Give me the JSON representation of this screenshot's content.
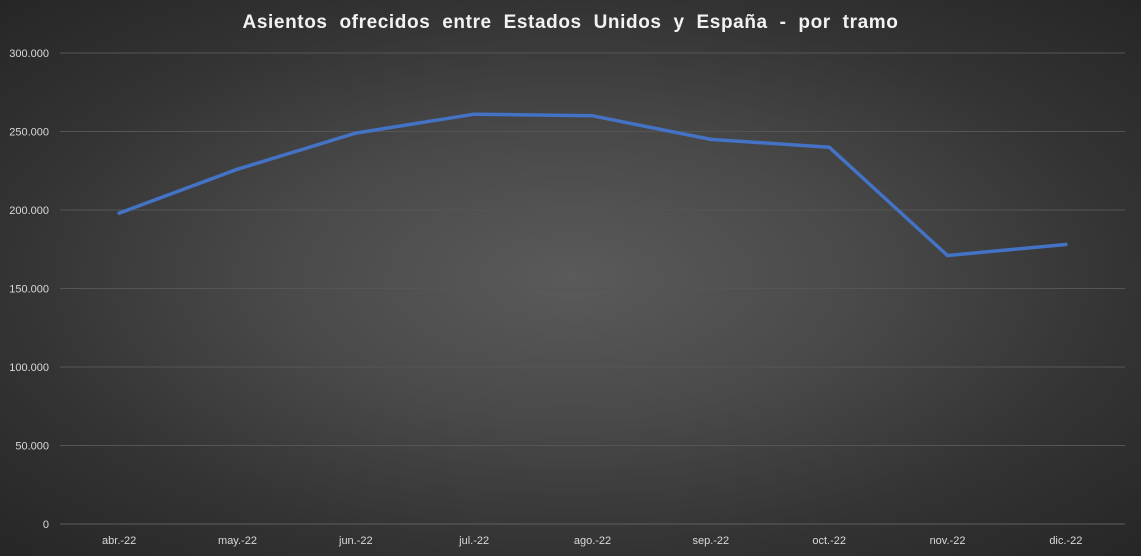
{
  "chart_data": {
    "type": "line",
    "title": "Asientos  ofrecidos  entre  Estados  Unidos  y  España  - por  tramo",
    "categories": [
      "abr.-22",
      "may.-22",
      "jun.-22",
      "jul.-22",
      "ago.-22",
      "sep.-22",
      "oct.-22",
      "nov.-22",
      "dic.-22"
    ],
    "series": [
      {
        "values": [
          198000,
          226000,
          249000,
          261000,
          260000,
          245000,
          240000,
          171000,
          178000
        ],
        "color": "#4472c4"
      }
    ],
    "ylim": [
      0,
      300000
    ],
    "yticks": [
      "0",
      "50.000",
      "100.000",
      "150.000",
      "200.000",
      "250.000",
      "300.000"
    ],
    "ytick_values": [
      0,
      50000,
      100000,
      150000,
      200000,
      250000,
      300000
    ],
    "grid": true,
    "legend": "none",
    "xlabel": "",
    "ylabel": ""
  }
}
